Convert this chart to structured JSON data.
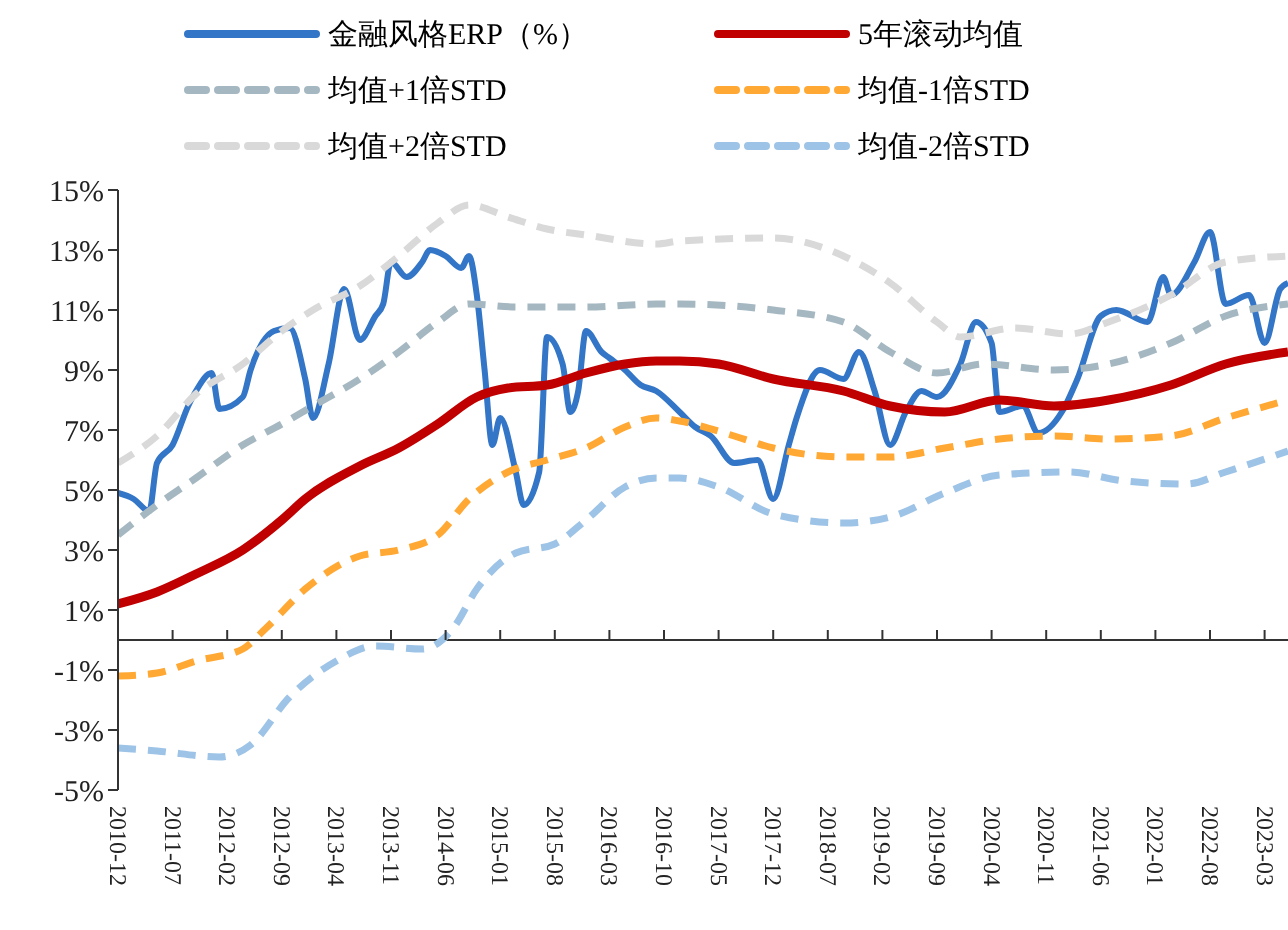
{
  "chart_data": {
    "type": "line",
    "legend": "top",
    "grid": false,
    "marker": "none",
    "ylim": [
      -5,
      15
    ],
    "yticks": [
      {
        "value": -5,
        "label": "-5%"
      },
      {
        "value": -3,
        "label": "-3%"
      },
      {
        "value": -1,
        "label": "-1%"
      },
      {
        "value": 1,
        "label": "1%"
      },
      {
        "value": 3,
        "label": "3%"
      },
      {
        "value": 5,
        "label": "5%"
      },
      {
        "value": 7,
        "label": "7%"
      },
      {
        "value": 9,
        "label": "9%"
      },
      {
        "value": 11,
        "label": "11%"
      },
      {
        "value": 13,
        "label": "13%"
      },
      {
        "value": 15,
        "label": "15%"
      }
    ],
    "xlim": [
      "2010-12",
      "2023-06"
    ],
    "xticks": [
      {
        "value": "2010-12",
        "label": "2010-12"
      },
      {
        "value": "2011-07",
        "label": "2011-07"
      },
      {
        "value": "2012-02",
        "label": "2012-02"
      },
      {
        "value": "2012-09",
        "label": "2012-09"
      },
      {
        "value": "2013-04",
        "label": "2013-04"
      },
      {
        "value": "2013-11",
        "label": "2013-11"
      },
      {
        "value": "2014-06",
        "label": "2014-06"
      },
      {
        "value": "2015-01",
        "label": "2015-01"
      },
      {
        "value": "2015-08",
        "label": "2015-08"
      },
      {
        "value": "2016-03",
        "label": "2016-03"
      },
      {
        "value": "2016-10",
        "label": "2016-10"
      },
      {
        "value": "2017-05",
        "label": "2017-05"
      },
      {
        "value": "2017-12",
        "label": "2017-12"
      },
      {
        "value": "2018-07",
        "label": "2018-07"
      },
      {
        "value": "2019-02",
        "label": "2019-02"
      },
      {
        "value": "2019-09",
        "label": "2019-09"
      },
      {
        "value": "2020-04",
        "label": "2020-04"
      },
      {
        "value": "2020-11",
        "label": "2020-11"
      },
      {
        "value": "2021-06",
        "label": "2021-06"
      },
      {
        "value": "2022-01",
        "label": "2022-01"
      },
      {
        "value": "2022-08",
        "label": "2022-08"
      },
      {
        "value": "2023-03",
        "label": "2023-03"
      }
    ],
    "series": [
      {
        "name": "金融风格ERP（%）",
        "color": "#3375c6",
        "line_style": "solid",
        "x": [
          "2010-12",
          "2011-02",
          "2011-04",
          "2011-05",
          "2011-07",
          "2011-09",
          "2011-10",
          "2011-12",
          "2012-01",
          "2012-04",
          "2012-05",
          "2012-08",
          "2012-10",
          "2012-12",
          "2013-01",
          "2013-03",
          "2013-05",
          "2013-07",
          "2013-09",
          "2013-10",
          "2013-11",
          "2014-01",
          "2014-03",
          "2014-04",
          "2014-06",
          "2014-08",
          "2014-09",
          "2014-10",
          "2014-11",
          "2014-12",
          "2015-01",
          "2015-03",
          "2015-04",
          "2015-06",
          "2015-07",
          "2015-09",
          "2015-10",
          "2015-11",
          "2015-12",
          "2016-02",
          "2016-03",
          "2016-05",
          "2016-07",
          "2016-09",
          "2016-12",
          "2017-02",
          "2017-04",
          "2017-07",
          "2017-10",
          "2017-12",
          "2018-02",
          "2018-03",
          "2018-06",
          "2018-09",
          "2018-11",
          "2019-01",
          "2019-03",
          "2019-05",
          "2019-07",
          "2019-09",
          "2019-12",
          "2020-02",
          "2020-04",
          "2020-05",
          "2020-08",
          "2020-10",
          "2021-01",
          "2021-03",
          "2021-06",
          "2021-08",
          "2021-12",
          "2022-02",
          "2022-03",
          "2022-06",
          "2022-08",
          "2022-10",
          "2023-01",
          "2023-03",
          "2023-05",
          "2023-06"
        ],
        "values": [
          4.9,
          4.7,
          4.3,
          5.9,
          6.5,
          7.8,
          8.3,
          8.9,
          7.7,
          8.1,
          9.0,
          10.3,
          10.4,
          8.7,
          7.4,
          9.2,
          11.7,
          10.0,
          10.8,
          11.2,
          12.6,
          12.1,
          12.6,
          13.0,
          12.8,
          12.4,
          12.8,
          11.5,
          9.0,
          6.5,
          7.4,
          5.6,
          4.5,
          5.6,
          10.1,
          9.2,
          7.6,
          8.3,
          10.3,
          9.6,
          9.4,
          9.0,
          8.5,
          8.3,
          7.6,
          7.1,
          6.8,
          5.9,
          6.0,
          4.7,
          6.5,
          7.4,
          9.0,
          8.7,
          9.6,
          8.3,
          6.5,
          7.6,
          8.3,
          8.1,
          9.2,
          10.6,
          9.9,
          7.6,
          7.8,
          6.9,
          7.6,
          8.7,
          10.8,
          11.0,
          10.6,
          12.1,
          11.5,
          12.6,
          13.6,
          11.2,
          11.5,
          9.9,
          11.7,
          11.9
        ]
      },
      {
        "name": "5年滚动均值",
        "color": "#c00000",
        "line_style": "solid",
        "x": [
          "2010-12",
          "2011-05",
          "2011-10",
          "2012-04",
          "2012-09",
          "2012-12",
          "2013-07",
          "2013-12",
          "2014-05",
          "2014-10",
          "2015-02",
          "2015-07",
          "2015-12",
          "2016-05",
          "2016-09",
          "2016-12",
          "2017-05",
          "2017-12",
          "2018-09",
          "2019-03",
          "2019-10",
          "2020-05",
          "2020-12",
          "2021-07",
          "2022-03",
          "2022-10",
          "2023-06"
        ],
        "values": [
          1.2,
          1.6,
          2.2,
          3.0,
          4.0,
          4.7,
          5.8,
          6.4,
          7.2,
          8.1,
          8.4,
          8.5,
          8.9,
          9.2,
          9.3,
          9.3,
          9.2,
          8.7,
          8.3,
          7.8,
          7.6,
          8.0,
          7.8,
          8.0,
          8.5,
          9.2,
          9.6
        ]
      },
      {
        "name": "均值+1倍STD",
        "color": "#a5b8c2",
        "line_style": "dashed",
        "x": [
          "2010-12",
          "2011-05",
          "2011-10",
          "2012-04",
          "2012-09",
          "2013-01",
          "2013-07",
          "2013-12",
          "2014-05",
          "2014-09",
          "2015-03",
          "2015-12",
          "2016-09",
          "2016-12",
          "2017-12",
          "2018-09",
          "2019-03",
          "2019-09",
          "2020-03",
          "2020-12",
          "2021-07",
          "2022-03",
          "2022-10",
          "2023-06"
        ],
        "values": [
          3.5,
          4.5,
          5.4,
          6.5,
          7.2,
          7.8,
          8.7,
          9.6,
          10.6,
          11.2,
          11.1,
          11.1,
          11.2,
          11.2,
          11.0,
          10.6,
          9.6,
          8.9,
          9.2,
          9.0,
          9.2,
          9.9,
          10.8,
          11.2
        ]
      },
      {
        "name": "均值-1倍STD",
        "color": "#ffa833",
        "line_style": "dashed",
        "x": [
          "2010-12",
          "2011-05",
          "2011-10",
          "2012-04",
          "2012-07",
          "2012-12",
          "2013-07",
          "2013-12",
          "2014-05",
          "2014-09",
          "2015-02",
          "2015-07",
          "2015-12",
          "2016-05",
          "2016-09",
          "2016-12",
          "2017-07",
          "2017-12",
          "2018-09",
          "2019-03",
          "2019-10",
          "2020-05",
          "2020-12",
          "2021-07",
          "2022-03",
          "2022-10",
          "2023-06"
        ],
        "values": [
          -1.2,
          -1.1,
          -0.7,
          -0.3,
          0.4,
          1.7,
          2.8,
          3.0,
          3.5,
          4.7,
          5.6,
          6.0,
          6.4,
          7.1,
          7.4,
          7.3,
          6.8,
          6.4,
          6.1,
          6.1,
          6.4,
          6.7,
          6.8,
          6.7,
          6.8,
          7.4,
          8.0
        ]
      },
      {
        "name": "均值+2倍STD",
        "color": "#d9d9d9",
        "line_style": "dashed",
        "x": [
          "2010-12",
          "2011-05",
          "2011-10",
          "2012-04",
          "2012-09",
          "2013-01",
          "2013-07",
          "2013-12",
          "2014-05",
          "2014-09",
          "2015-02",
          "2015-07",
          "2015-12",
          "2016-09",
          "2016-12",
          "2017-12",
          "2018-09",
          "2019-03",
          "2019-09",
          "2019-12",
          "2020-07",
          "2021-02",
          "2021-07",
          "2022-03",
          "2022-10",
          "2023-06"
        ],
        "values": [
          5.9,
          6.8,
          8.2,
          9.2,
          10.3,
          11.0,
          11.8,
          12.8,
          13.9,
          14.5,
          14.1,
          13.7,
          13.5,
          13.2,
          13.3,
          13.4,
          12.8,
          11.9,
          10.6,
          10.1,
          10.4,
          10.2,
          10.6,
          11.5,
          12.6,
          12.8
        ]
      },
      {
        "name": "均值-2倍STD",
        "color": "#9dc3e6",
        "line_style": "dashed",
        "x": [
          "2010-12",
          "2011-05",
          "2012-01",
          "2012-05",
          "2012-10",
          "2013-04",
          "2013-09",
          "2014-03",
          "2014-07",
          "2014-10",
          "2015-03",
          "2015-08",
          "2015-12",
          "2016-05",
          "2016-09",
          "2016-12",
          "2017-05",
          "2017-12",
          "2018-09",
          "2019-03",
          "2019-10",
          "2020-05",
          "2021-02",
          "2021-09",
          "2022-05",
          "2022-10",
          "2023-06"
        ],
        "values": [
          -3.6,
          -3.7,
          -3.9,
          -3.5,
          -1.9,
          -0.7,
          -0.2,
          -0.3,
          0.4,
          1.7,
          2.9,
          3.2,
          4.0,
          5.1,
          5.4,
          5.4,
          5.1,
          4.2,
          3.9,
          4.1,
          4.9,
          5.5,
          5.6,
          5.3,
          5.2,
          5.6,
          6.3
        ]
      }
    ]
  }
}
